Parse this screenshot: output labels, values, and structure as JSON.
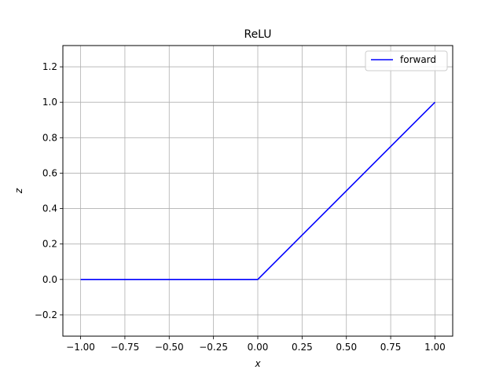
{
  "chart_data": {
    "type": "line",
    "title": "ReLU",
    "xlabel": "x",
    "ylabel": "z",
    "xlim": [
      -1.1,
      1.1
    ],
    "ylim": [
      -0.32,
      1.32
    ],
    "xticks": [
      -1.0,
      -0.75,
      -0.5,
      -0.25,
      0.0,
      0.25,
      0.5,
      0.75,
      1.0
    ],
    "xtick_labels": [
      "−1.00",
      "−0.75",
      "−0.50",
      "−0.25",
      "0.00",
      "0.25",
      "0.50",
      "0.75",
      "1.00"
    ],
    "yticks": [
      -0.2,
      0.0,
      0.2,
      0.4,
      0.6,
      0.8,
      1.0,
      1.2
    ],
    "ytick_labels": [
      "−0.2",
      "0.0",
      "0.2",
      "0.4",
      "0.6",
      "0.8",
      "1.0",
      "1.2"
    ],
    "grid": true,
    "legend_position": "top-right",
    "series": [
      {
        "name": "forward",
        "color": "#0000ff",
        "x": [
          -1.0,
          0.0,
          1.0
        ],
        "y": [
          0.0,
          0.0,
          1.0
        ]
      }
    ]
  }
}
